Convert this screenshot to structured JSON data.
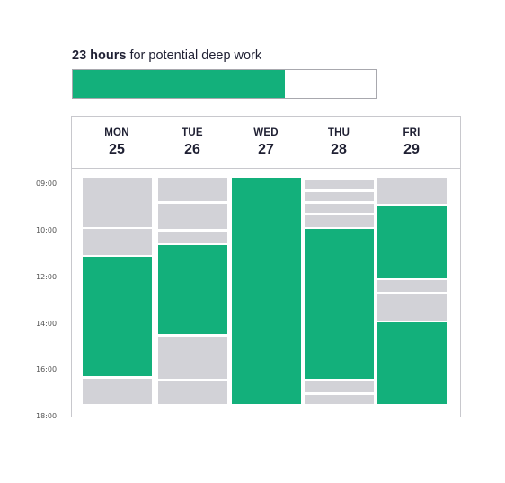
{
  "header": {
    "hours_strong": "23 hours",
    "hours_rest": " for potential deep work",
    "progress_fraction": 0.7
  },
  "colors": {
    "free": "#13b07b",
    "busy": "#d2d2d7"
  },
  "time_labels": [
    "09:00",
    "10:00",
    "12:00",
    "14:00",
    "16:00",
    "18:00"
  ],
  "days": [
    {
      "name": "MON",
      "num": "25",
      "blocks": [
        [
          "busy",
          0,
          1
        ],
        [
          "busy",
          1,
          2.1
        ],
        [
          "busy",
          2.2,
          3.3
        ],
        [
          "free",
          3.4,
          8.5
        ],
        [
          "busy",
          8.6,
          9.7
        ]
      ]
    },
    {
      "name": "TUE",
      "num": "26",
      "blocks": [
        [
          "busy",
          0,
          1
        ],
        [
          "busy",
          1.1,
          2.2
        ],
        [
          "busy",
          2.3,
          2.8
        ],
        [
          "free",
          2.9,
          6.7
        ],
        [
          "busy",
          6.8,
          8.6
        ],
        [
          "busy",
          8.7,
          9.7
        ]
      ]
    },
    {
      "name": "WED",
      "num": "27",
      "blocks": [
        [
          "free",
          0,
          9.7
        ]
      ]
    },
    {
      "name": "THU",
      "num": "28",
      "blocks": [
        [
          "busy",
          0.1,
          0.5
        ],
        [
          "busy",
          0.6,
          1.0
        ],
        [
          "busy",
          1.1,
          1.5
        ],
        [
          "busy",
          1.6,
          2.1
        ],
        [
          "free",
          2.2,
          8.6
        ],
        [
          "busy",
          8.7,
          9.2
        ],
        [
          "busy",
          9.3,
          9.7
        ]
      ]
    },
    {
      "name": "FRI",
      "num": "29",
      "blocks": [
        [
          "busy",
          0,
          1.1
        ],
        [
          "free",
          1.2,
          4.3
        ],
        [
          "busy",
          4.4,
          4.9
        ],
        [
          "busy",
          5.0,
          6.1
        ],
        [
          "free",
          6.2,
          9.7
        ]
      ]
    }
  ]
}
